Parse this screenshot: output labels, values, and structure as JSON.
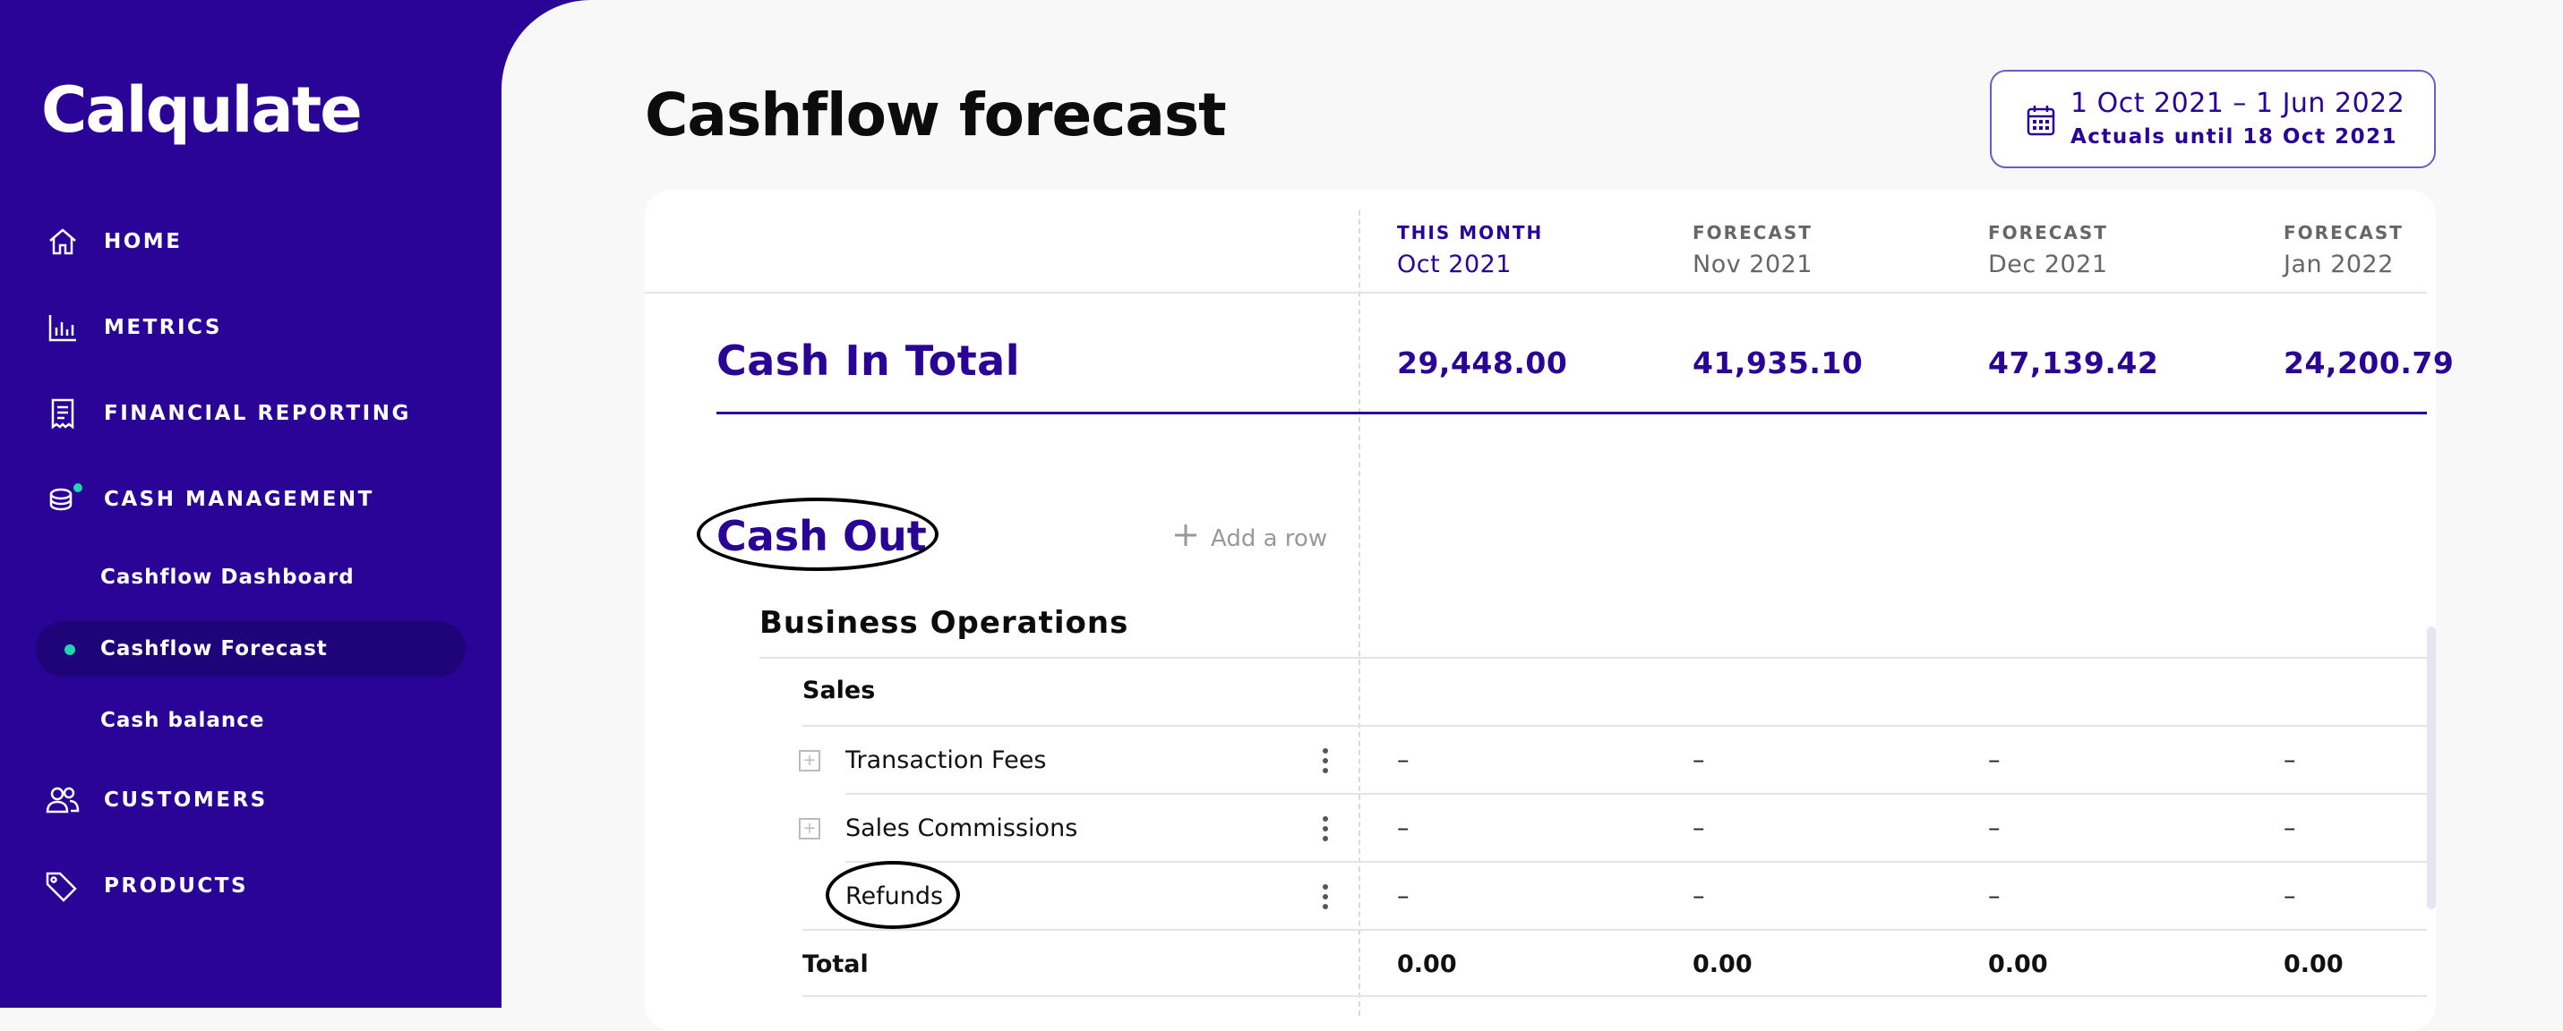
{
  "app": {
    "logo": "Calqulate"
  },
  "sidebar": {
    "items": [
      {
        "label": "HOME",
        "icon": "home-icon"
      },
      {
        "label": "METRICS",
        "icon": "bar-chart-icon"
      },
      {
        "label": "FINANCIAL REPORTING",
        "icon": "receipt-icon"
      },
      {
        "label": "CASH MANAGEMENT",
        "icon": "coins-icon"
      },
      {
        "label": "CUSTOMERS",
        "icon": "users-icon"
      },
      {
        "label": "PRODUCTS",
        "icon": "tag-icon"
      }
    ],
    "subitems": [
      {
        "label": "Cashflow Dashboard"
      },
      {
        "label": "Cashflow Forecast",
        "active": true
      },
      {
        "label": "Cash balance"
      }
    ]
  },
  "header": {
    "title": "Cashflow forecast",
    "date_range": "1 Oct 2021 – 1 Jun 2022",
    "actuals": "Actuals until 18 Oct 2021"
  },
  "columns": [
    {
      "kind": "THIS MONTH",
      "month": "Oct 2021"
    },
    {
      "kind": "FORECAST",
      "month": "Nov 2021"
    },
    {
      "kind": "FORECAST",
      "month": "Dec 2021"
    },
    {
      "kind": "FORECAST",
      "month": "Jan 2022"
    }
  ],
  "cash_in": {
    "label": "Cash In Total",
    "values": [
      "29,448.00",
      "41,935.10",
      "47,139.42",
      "24,200.79"
    ]
  },
  "cash_out": {
    "label": "Cash Out",
    "add_row": "Add a row",
    "group": "Business Operations",
    "subgroup": "Sales",
    "rows": [
      {
        "label": "Transaction Fees",
        "values": [
          "–",
          "–",
          "–",
          "–"
        ]
      },
      {
        "label": "Sales Commissions",
        "values": [
          "–",
          "–",
          "–",
          "–"
        ]
      },
      {
        "label": "Refunds",
        "values": [
          "–",
          "–",
          "–",
          "–"
        ]
      }
    ],
    "total_label": "Total",
    "total_values": [
      "0.00",
      "0.00",
      "0.00",
      "0.00"
    ]
  },
  "colors": {
    "brand": "#2a0496",
    "accent": "#22d3b0"
  }
}
